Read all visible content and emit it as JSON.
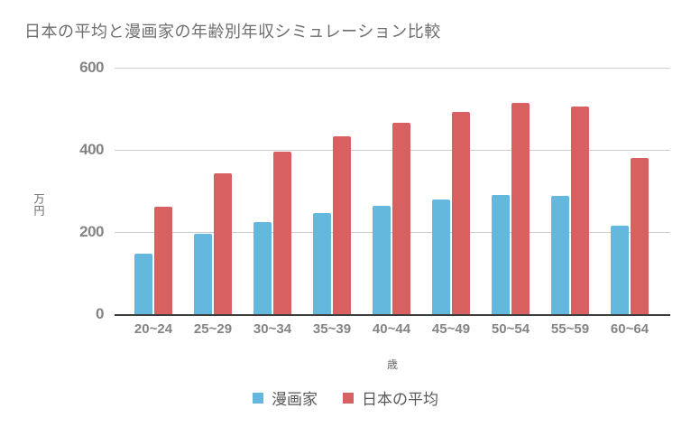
{
  "colors": {
    "manga": "#64b8de",
    "japan_avg": "#d96060",
    "grid": "#cccccc",
    "axis": "#3c3c3c",
    "tick_text": "#848484",
    "title_text": "#6e6e6e",
    "legend_text": "#575757"
  },
  "chart_data": {
    "type": "bar",
    "title": "日本の平均と漫画家の年齢別年収シミュレーション比較",
    "xlabel": "歳",
    "ylabel": "万円",
    "categories": [
      "20~24",
      "25~29",
      "30~34",
      "35~39",
      "40~44",
      "45~49",
      "50~54",
      "55~59",
      "60~64"
    ],
    "series": [
      {
        "name": "漫画家",
        "color_key": "manga",
        "values": [
          148,
          195,
          224,
          246,
          264,
          279,
          291,
          287,
          215
        ]
      },
      {
        "name": "日本の平均",
        "color_key": "japan_avg",
        "values": [
          262,
          343,
          395,
          433,
          466,
          493,
          514,
          506,
          380
        ]
      }
    ],
    "ylim": [
      0,
      600
    ],
    "yticks": [
      0,
      200,
      400,
      600
    ],
    "grid": true,
    "legend_position": "bottom"
  }
}
